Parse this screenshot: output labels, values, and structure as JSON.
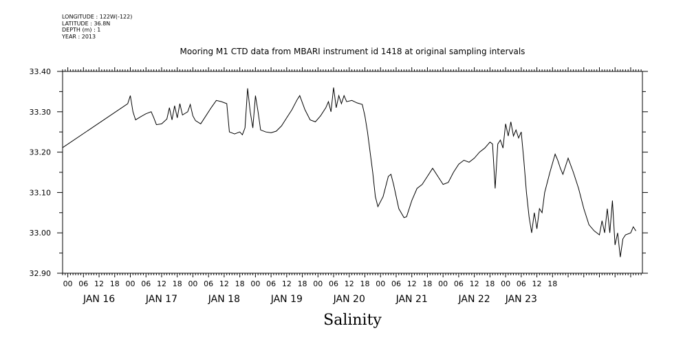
{
  "header": {
    "meta_lines": [
      "LONGITUDE : 122W(-122)",
      "LATITUDE : 36.8N",
      "DEPTH (m) : 1",
      "YEAR : 2013"
    ]
  },
  "chart_data": {
    "type": "line",
    "title": "Mooring M1 CTD data from MBARI instrument id 1418 at original sampling intervals",
    "xlabel": "Salinity",
    "ylabel": "",
    "ylim": [
      32.9,
      33.4
    ],
    "yticks": [
      "32.90",
      "33.00",
      "33.10",
      "33.20",
      "33.30",
      "33.40"
    ],
    "hour_ticks": [
      "00",
      "06",
      "12",
      "18",
      "00",
      "06",
      "12",
      "18",
      "00",
      "06",
      "12",
      "18",
      "00",
      "06",
      "12",
      "18",
      "00",
      "06",
      "12",
      "18",
      "00",
      "06",
      "12",
      "18",
      "00",
      "06",
      "12",
      "18",
      "00",
      "06",
      "12",
      "18"
    ],
    "date_labels": [
      "JAN 16",
      "JAN 17",
      "JAN 18",
      "JAN 19",
      "JAN 20",
      "JAN 21",
      "JAN 22",
      "JAN 23"
    ],
    "grid": false,
    "series": [
      {
        "color": "#000000",
        "points": [
          [
            "2013-01-15T22:00",
            33.211
          ],
          [
            "2013-01-16T23:00",
            33.32
          ],
          [
            "2013-01-17T00:00",
            33.34
          ],
          [
            "2013-01-17T01:00",
            33.3
          ],
          [
            "2013-01-17T02:00",
            33.28
          ],
          [
            "2013-01-17T04:00",
            33.288
          ],
          [
            "2013-01-17T06:00",
            33.295
          ],
          [
            "2013-01-17T08:00",
            33.3
          ],
          [
            "2013-01-17T09:00",
            33.285
          ],
          [
            "2013-01-17T10:00",
            33.268
          ],
          [
            "2013-01-17T12:00",
            33.27
          ],
          [
            "2013-01-17T14:00",
            33.282
          ],
          [
            "2013-01-17T15:00",
            33.31
          ],
          [
            "2013-01-17T16:00",
            33.28
          ],
          [
            "2013-01-17T17:00",
            33.315
          ],
          [
            "2013-01-17T18:00",
            33.285
          ],
          [
            "2013-01-17T19:00",
            33.32
          ],
          [
            "2013-01-17T20:00",
            33.292
          ],
          [
            "2013-01-17T22:00",
            33.3
          ],
          [
            "2013-01-17T23:00",
            33.318
          ],
          [
            "2013-01-18T00:00",
            33.29
          ],
          [
            "2013-01-18T01:00",
            33.278
          ],
          [
            "2013-01-18T03:00",
            33.27
          ],
          [
            "2013-01-18T05:00",
            33.29
          ],
          [
            "2013-01-18T07:00",
            33.31
          ],
          [
            "2013-01-18T09:00",
            33.328
          ],
          [
            "2013-01-18T11:00",
            33.325
          ],
          [
            "2013-01-18T13:00",
            33.32
          ],
          [
            "2013-01-18T14:00",
            33.25
          ],
          [
            "2013-01-18T16:00",
            33.245
          ],
          [
            "2013-01-18T18:00",
            33.25
          ],
          [
            "2013-01-18T19:00",
            33.243
          ],
          [
            "2013-01-18T20:00",
            33.26
          ],
          [
            "2013-01-18T21:00",
            33.358
          ],
          [
            "2013-01-18T22:00",
            33.3
          ],
          [
            "2013-01-18T23:00",
            33.26
          ],
          [
            "2013-01-19T00:00",
            33.34
          ],
          [
            "2013-01-19T01:00",
            33.3
          ],
          [
            "2013-01-19T02:00",
            33.255
          ],
          [
            "2013-01-19T04:00",
            33.25
          ],
          [
            "2013-01-19T06:00",
            33.248
          ],
          [
            "2013-01-19T08:00",
            33.252
          ],
          [
            "2013-01-19T10:00",
            33.265
          ],
          [
            "2013-01-19T12:00",
            33.285
          ],
          [
            "2013-01-19T14:00",
            33.305
          ],
          [
            "2013-01-19T16:00",
            33.33
          ],
          [
            "2013-01-19T17:00",
            33.34
          ],
          [
            "2013-01-19T19:00",
            33.305
          ],
          [
            "2013-01-19T21:00",
            33.28
          ],
          [
            "2013-01-19T23:00",
            33.275
          ],
          [
            "2013-01-20T01:00",
            33.29
          ],
          [
            "2013-01-20T03:00",
            33.31
          ],
          [
            "2013-01-20T04:00",
            33.325
          ],
          [
            "2013-01-20T05:00",
            33.3
          ],
          [
            "2013-01-20T06:00",
            33.36
          ],
          [
            "2013-01-20T07:00",
            33.31
          ],
          [
            "2013-01-20T08:00",
            33.34
          ],
          [
            "2013-01-20T09:00",
            33.32
          ],
          [
            "2013-01-20T10:00",
            33.34
          ],
          [
            "2013-01-20T11:00",
            33.325
          ],
          [
            "2013-01-20T13:00",
            33.328
          ],
          [
            "2013-01-20T15:00",
            33.322
          ],
          [
            "2013-01-20T17:00",
            33.318
          ],
          [
            "2013-01-20T18:00",
            33.29
          ],
          [
            "2013-01-20T19:00",
            33.25
          ],
          [
            "2013-01-20T20:00",
            33.2
          ],
          [
            "2013-01-20T21:00",
            33.15
          ],
          [
            "2013-01-20T22:00",
            33.09
          ],
          [
            "2013-01-20T23:00",
            33.065
          ],
          [
            "2013-01-21T01:00",
            33.09
          ],
          [
            "2013-01-21T03:00",
            33.14
          ],
          [
            "2013-01-21T04:00",
            33.145
          ],
          [
            "2013-01-21T05:00",
            33.12
          ],
          [
            "2013-01-21T07:00",
            33.06
          ],
          [
            "2013-01-21T09:00",
            33.038
          ],
          [
            "2013-01-21T10:00",
            33.04
          ],
          [
            "2013-01-21T12:00",
            33.08
          ],
          [
            "2013-01-21T14:00",
            33.11
          ],
          [
            "2013-01-21T16:00",
            33.12
          ],
          [
            "2013-01-21T18:00",
            33.14
          ],
          [
            "2013-01-21T20:00",
            33.16
          ],
          [
            "2013-01-21T22:00",
            33.14
          ],
          [
            "2013-01-22T00:00",
            33.12
          ],
          [
            "2013-01-22T02:00",
            33.125
          ],
          [
            "2013-01-22T04:00",
            33.15
          ],
          [
            "2013-01-22T06:00",
            33.17
          ],
          [
            "2013-01-22T08:00",
            33.18
          ],
          [
            "2013-01-22T10:00",
            33.175
          ],
          [
            "2013-01-22T12:00",
            33.185
          ],
          [
            "2013-01-22T14:00",
            33.2
          ],
          [
            "2013-01-22T16:00",
            33.21
          ],
          [
            "2013-01-22T18:00",
            33.225
          ],
          [
            "2013-01-22T19:00",
            33.22
          ],
          [
            "2013-01-22T20:00",
            33.11
          ],
          [
            "2013-01-22T21:00",
            33.22
          ],
          [
            "2013-01-22T22:00",
            33.23
          ],
          [
            "2013-01-22T23:00",
            33.21
          ],
          [
            "2013-01-23T00:00",
            33.27
          ],
          [
            "2013-01-23T01:00",
            33.24
          ],
          [
            "2013-01-23T02:00",
            33.275
          ],
          [
            "2013-01-23T03:00",
            33.24
          ],
          [
            "2013-01-23T04:00",
            33.255
          ],
          [
            "2013-01-23T05:00",
            33.235
          ],
          [
            "2013-01-23T06:00",
            33.25
          ],
          [
            "2013-01-23T07:00",
            33.18
          ],
          [
            "2013-01-23T08:00",
            33.1
          ],
          [
            "2013-01-23T09:00",
            33.04
          ],
          [
            "2013-01-23T10:00",
            33.0
          ],
          [
            "2013-01-23T11:00",
            33.05
          ],
          [
            "2013-01-23T12:00",
            33.01
          ],
          [
            "2013-01-23T13:00",
            33.06
          ],
          [
            "2013-01-23T14:00",
            33.05
          ],
          [
            "2013-01-23T15:00",
            33.1
          ],
          [
            "2013-01-23T17:00",
            33.15
          ],
          [
            "2013-01-23T19:00",
            33.195
          ],
          [
            "2013-01-23T20:00",
            33.18
          ],
          [
            "2013-01-23T21:00",
            33.16
          ],
          [
            "2013-01-23T22:00",
            33.145
          ],
          [
            "2013-01-24T00:00",
            33.185
          ],
          [
            "2013-01-24T02:00",
            33.15
          ],
          [
            "2013-01-24T04:00",
            33.11
          ],
          [
            "2013-01-24T06:00",
            33.06
          ],
          [
            "2013-01-24T08:00",
            33.02
          ],
          [
            "2013-01-24T10:00",
            33.005
          ],
          [
            "2013-01-24T12:00",
            32.995
          ],
          [
            "2013-01-24T13:00",
            33.03
          ],
          [
            "2013-01-24T14:00",
            33.0
          ],
          [
            "2013-01-24T15:00",
            33.06
          ],
          [
            "2013-01-24T16:00",
            33.0
          ],
          [
            "2013-01-24T17:00",
            33.08
          ],
          [
            "2013-01-24T18:00",
            32.97
          ],
          [
            "2013-01-24T19:00",
            33.0
          ],
          [
            "2013-01-24T20:00",
            32.94
          ],
          [
            "2013-01-24T21:00",
            32.985
          ],
          [
            "2013-01-24T22:00",
            32.995
          ],
          [
            "2013-01-25T00:00",
            33.0
          ],
          [
            "2013-01-25T01:00",
            33.015
          ],
          [
            "2013-01-25T02:00",
            33.005
          ]
        ]
      }
    ]
  }
}
